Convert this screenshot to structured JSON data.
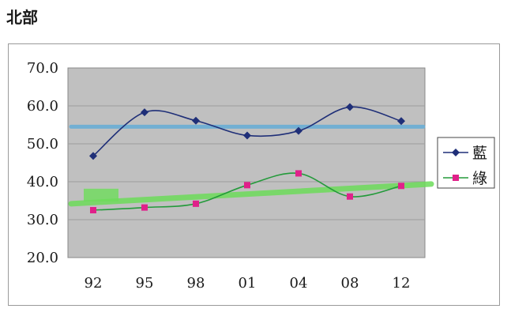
{
  "page": {
    "title": "北部"
  },
  "chart_data": {
    "type": "line",
    "title": "",
    "xlabel": "",
    "ylabel": "",
    "categories": [
      "92",
      "95",
      "98",
      "01",
      "04",
      "08",
      "12"
    ],
    "ylim": [
      20,
      70
    ],
    "yticks": [
      "70.0",
      "60.0",
      "50.0",
      "40.0",
      "30.0",
      "20.0"
    ],
    "grid": true,
    "plot_background": "#c0c0c0",
    "legend_position": "right",
    "series": [
      {
        "name": "藍",
        "values": [
          46.8,
          58.3,
          56.1,
          52.2,
          53.4,
          59.7,
          56.0
        ],
        "color": "#1f2f78",
        "marker": "diamond"
      },
      {
        "name": "綠",
        "values": [
          32.5,
          33.2,
          34.2,
          39.1,
          42.2,
          36.1,
          38.9
        ],
        "color": "#239a3a",
        "marker": "square",
        "marker_color": "#e0218a"
      }
    ],
    "annotations": [
      {
        "kind": "hand-drawn-trend",
        "color": "#6aaed6",
        "from": 54.5,
        "to": 54.5
      },
      {
        "kind": "hand-drawn-trend",
        "color": "#6ddc5a",
        "from": 34.2,
        "to": 39.4
      }
    ]
  }
}
